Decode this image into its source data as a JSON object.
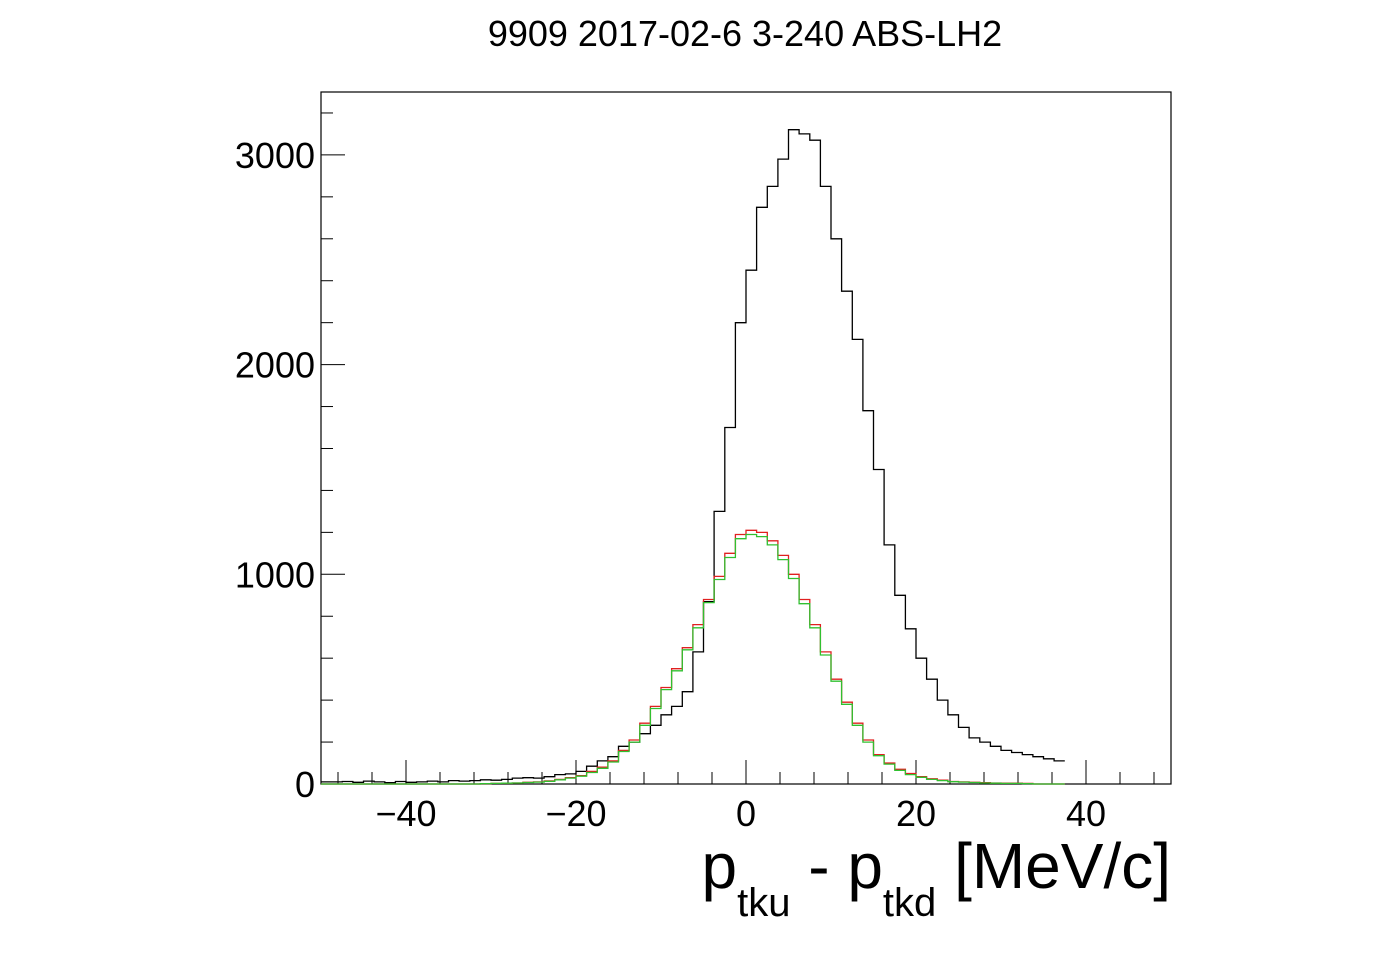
{
  "chart_data": {
    "type": "line",
    "title": "9909 2017-02-6 3-240 ABS-LH2",
    "xlabel": {
      "p1": "p",
      "sub1": "tku",
      "minus": " - ",
      "p2": "p",
      "sub2": "tkd",
      "unit": " [MeV/c]"
    },
    "ylabel": "",
    "xlim": [
      -50,
      50
    ],
    "ylim": [
      0,
      3300
    ],
    "x_ticks": [
      -40,
      -20,
      0,
      20,
      40
    ],
    "x_tick_labels": [
      "−40",
      "−20",
      "0",
      "20",
      "40"
    ],
    "y_ticks": [
      0,
      1000,
      2000,
      3000
    ],
    "y_tick_labels": [
      "0",
      "1000",
      "2000",
      "3000"
    ],
    "grid": false,
    "legend": "none",
    "bin_edges_start": -50,
    "bin_width": 1.25,
    "series": [
      {
        "color": "#000000",
        "values": [
          10,
          10,
          12,
          8,
          14,
          10,
          6,
          12,
          8,
          10,
          14,
          10,
          16,
          14,
          16,
          20,
          18,
          22,
          28,
          30,
          28,
          35,
          45,
          48,
          60,
          85,
          110,
          130,
          180,
          200,
          240,
          280,
          330,
          370,
          440,
          630,
          870,
          1300,
          1700,
          2200,
          2450,
          2750,
          2850,
          2980,
          3120,
          3100,
          3070,
          2850,
          2600,
          2350,
          2120,
          1780,
          1500,
          1140,
          900,
          740,
          600,
          500,
          400,
          330,
          270,
          220,
          200,
          180,
          160,
          150,
          140,
          130,
          120,
          110
        ]
      },
      {
        "color": "#e02020",
        "values": [
          0,
          0,
          0,
          0,
          0,
          0,
          0,
          0,
          0,
          0,
          0,
          0,
          0,
          0,
          0,
          2,
          3,
          4,
          5,
          8,
          10,
          15,
          22,
          30,
          40,
          60,
          80,
          110,
          160,
          210,
          290,
          370,
          460,
          550,
          650,
          760,
          880,
          990,
          1100,
          1190,
          1210,
          1200,
          1160,
          1090,
          1000,
          880,
          760,
          630,
          500,
          390,
          290,
          210,
          140,
          100,
          70,
          50,
          35,
          25,
          18,
          12,
          10,
          8,
          6,
          5,
          4,
          4,
          3,
          0,
          0,
          0
        ]
      },
      {
        "color": "#30c030",
        "values": [
          0,
          0,
          0,
          0,
          0,
          0,
          0,
          0,
          0,
          0,
          0,
          0,
          0,
          0,
          0,
          2,
          3,
          4,
          5,
          7,
          9,
          13,
          20,
          28,
          37,
          55,
          75,
          105,
          155,
          200,
          280,
          360,
          450,
          540,
          640,
          745,
          865,
          975,
          1080,
          1170,
          1190,
          1180,
          1140,
          1070,
          980,
          860,
          745,
          615,
          490,
          380,
          280,
          200,
          135,
          95,
          65,
          45,
          32,
          22,
          16,
          11,
          9,
          7,
          5,
          4,
          3,
          3,
          2,
          0,
          0,
          0
        ]
      }
    ]
  }
}
